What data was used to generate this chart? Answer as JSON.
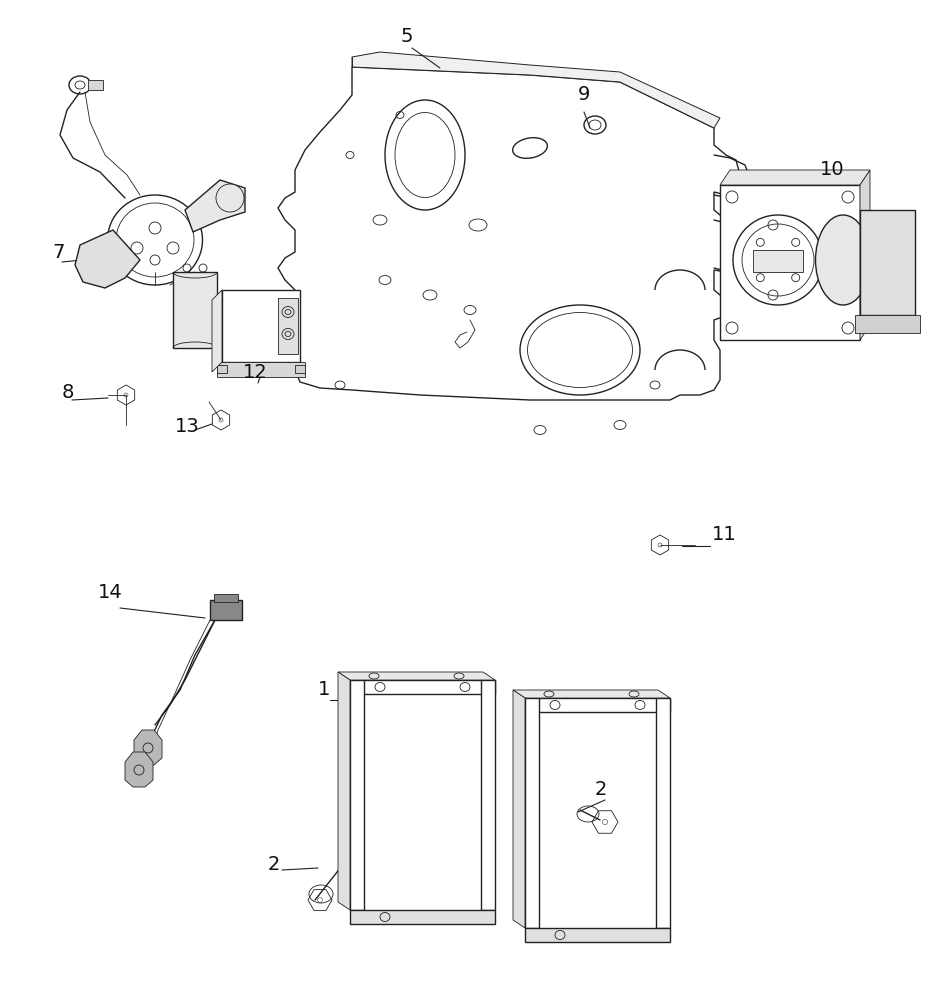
{
  "bg_color": "#ffffff",
  "line_color": "#222222",
  "label_color": "#111111",
  "fig_width": 9.4,
  "fig_height": 10.0,
  "dpi": 100
}
